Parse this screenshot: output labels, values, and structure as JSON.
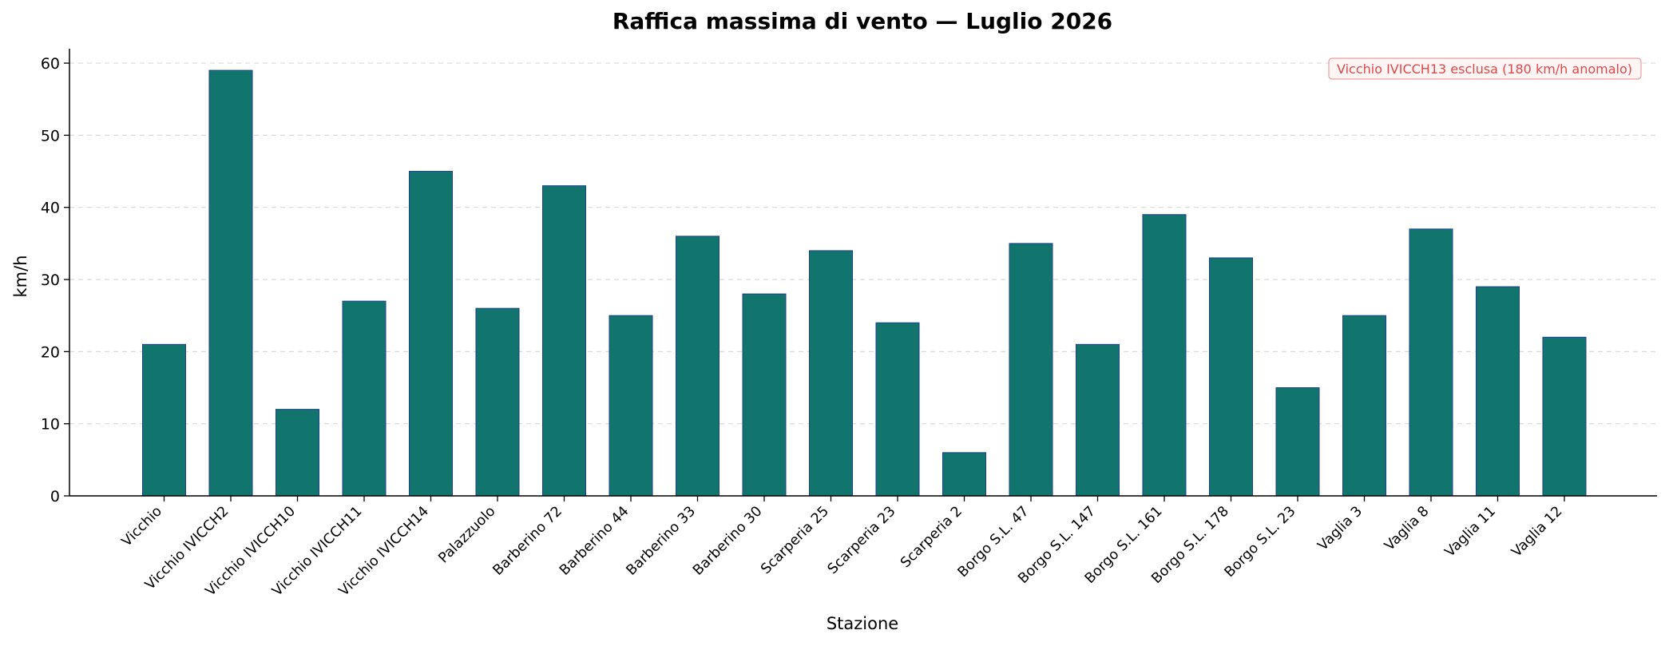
{
  "chart_data": {
    "type": "bar",
    "title": "Raffica massima di vento — Luglio 2026",
    "xlabel": "Stazione",
    "ylabel": "km/h",
    "ylim": [
      0,
      62
    ],
    "yticks": [
      0,
      10,
      20,
      30,
      40,
      50,
      60
    ],
    "grid": "horizontal-dashed",
    "categories": [
      "Vicchio",
      "Vicchio IVICCH2",
      "Vicchio IVICCH10",
      "Vicchio IVICCH11",
      "Vicchio IVICCH14",
      "Palazzuolo",
      "Barberino 72",
      "Barberino 44",
      "Barberino 33",
      "Barberino 30",
      "Scarperia 25",
      "Scarperia 23",
      "Scarperia 2",
      "Borgo S.L. 47",
      "Borgo S.L. 147",
      "Borgo S.L. 161",
      "Borgo S.L. 178",
      "Borgo S.L. 23",
      "Vaglia 3",
      "Vaglia 8",
      "Vaglia 11",
      "Vaglia 12"
    ],
    "values": [
      21,
      59,
      12,
      27,
      45,
      26,
      43,
      25,
      36,
      28,
      34,
      24,
      6,
      35,
      21,
      39,
      33,
      15,
      25,
      37,
      29,
      22
    ],
    "annotation": "Vicchio IVICCH13 esclusa (180 km/h anomalo)",
    "colors": {
      "bar_fill": "#11756e",
      "bar_edge": "#1f3f8f",
      "grid": "#d9d9d9",
      "annotation_text": "#e04848",
      "annotation_border": "#e8a0a0",
      "annotation_bg": "#fff5f5"
    }
  }
}
